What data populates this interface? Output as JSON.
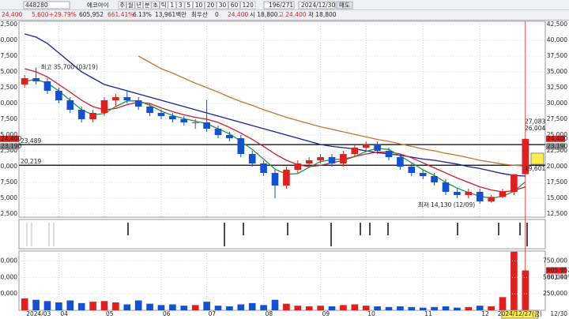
{
  "toolbar": {
    "code": "448280",
    "name": "에코아이",
    "periods": [
      "주",
      "월",
      "년",
      "분",
      "초",
      "틱",
      "1",
      "3",
      "5",
      "10",
      "20",
      "30",
      "60",
      "120"
    ],
    "page": "196/271",
    "date": "2024/12/30",
    "action": "매도"
  },
  "quote": {
    "price": "24,400",
    "change": "5,600",
    "rate": "+29.79%",
    "volume": "605,952",
    "volume_rate": "661.41%",
    "turnover": "6.13%",
    "amount": "13,961백만",
    "best_label": "최우선",
    "best_qty": "0",
    "best_price": "24,400",
    "open": "시 18,800",
    "high": "고 24,400",
    "low": "저 18,800"
  },
  "chart_data": [
    {
      "type": "candlestick",
      "categories": [
        null,
        null,
        null,
        null,
        null,
        null,
        null,
        null,
        null,
        null,
        null,
        null,
        null,
        null,
        null,
        null,
        null,
        null,
        null,
        null,
        null,
        null,
        null,
        null,
        null,
        null,
        null,
        null,
        null,
        null,
        null,
        null,
        null,
        null,
        null,
        null,
        null,
        null,
        null,
        null,
        null,
        null,
        null,
        null,
        null
      ],
      "open": [
        33000,
        34000,
        33500,
        32000,
        30500,
        29000,
        27500,
        28500,
        30500,
        31000,
        30500,
        29500,
        28500,
        28000,
        27500,
        27000,
        27000,
        26000,
        25000,
        24500,
        22000,
        20500,
        19000,
        17000,
        19500,
        20500,
        21000,
        21500,
        20500,
        22000,
        23000,
        23500,
        22500,
        21500,
        20000,
        19000,
        18500,
        17500,
        16000,
        15500,
        16000,
        14500,
        15200,
        16000,
        18800
      ],
      "high": [
        34500,
        35700,
        34000,
        32500,
        31000,
        29500,
        29000,
        31000,
        31500,
        32000,
        31000,
        30000,
        29000,
        28500,
        28000,
        27500,
        30500,
        26500,
        25500,
        25000,
        22500,
        21000,
        19500,
        20000,
        21000,
        21500,
        22000,
        22000,
        22500,
        23500,
        24000,
        24000,
        23000,
        22000,
        20500,
        19500,
        19000,
        18000,
        16500,
        16500,
        16500,
        15500,
        16500,
        18800,
        24400
      ],
      "low": [
        32500,
        33000,
        31500,
        30000,
        28500,
        27000,
        27000,
        28000,
        29500,
        30000,
        29000,
        28000,
        27500,
        27000,
        26500,
        26000,
        25500,
        24500,
        24000,
        21500,
        20000,
        18500,
        15000,
        16500,
        19000,
        20000,
        20500,
        20000,
        20000,
        21500,
        22500,
        22000,
        21000,
        19500,
        18500,
        18000,
        17000,
        15500,
        15000,
        15000,
        14130,
        14300,
        15000,
        15500,
        18800
      ],
      "close": [
        34000,
        33500,
        32000,
        30500,
        29000,
        27500,
        28500,
        30500,
        31000,
        30500,
        29500,
        28500,
        28000,
        27500,
        27000,
        27000,
        26000,
        25000,
        24500,
        22000,
        20500,
        19000,
        17000,
        19500,
        20500,
        21000,
        21500,
        20500,
        22000,
        23000,
        23500,
        22500,
        21500,
        20000,
        19000,
        18500,
        17500,
        16000,
        15500,
        16000,
        14500,
        15200,
        16000,
        18800,
        24400
      ],
      "up_color": "#e0201e",
      "down_color": "#1450d2",
      "series": [
        {
          "color": "#1c1ca0",
          "values": [
            41000,
            40500,
            39500,
            38000,
            36500,
            35000,
            34000,
            33000,
            32500,
            32000,
            31500,
            31000,
            30500,
            30000,
            29500,
            29000,
            28500,
            28000,
            27500,
            27000,
            26500,
            26000,
            25500,
            25000,
            24500,
            24000,
            23500,
            23200,
            23000,
            22800,
            22500,
            22200,
            22000,
            21800,
            21500,
            21200,
            21000,
            20700,
            20400,
            20000,
            19700,
            19300,
            18900,
            18600,
            18500
          ]
        },
        {
          "color": "#c8742a",
          "values": [
            null,
            null,
            null,
            null,
            null,
            null,
            null,
            null,
            null,
            null,
            37500,
            36500,
            35500,
            34800,
            34000,
            33200,
            32500,
            31800,
            31000,
            30300,
            29700,
            29000,
            28400,
            27800,
            27300,
            26800,
            26300,
            25900,
            25500,
            25100,
            24700,
            24300,
            24000,
            23600,
            23200,
            22800,
            22500,
            22100,
            21800,
            21400,
            21000,
            20700,
            20400,
            20200,
            20100
          ]
        },
        {
          "color": "#c81e32",
          "values": [
            35500,
            35000,
            34200,
            33000,
            31800,
            30500,
            29500,
            29000,
            29200,
            29800,
            30200,
            30000,
            29300,
            28700,
            28200,
            27800,
            27500,
            27000,
            26200,
            25300,
            24300,
            23200,
            22000,
            21000,
            20300,
            20000,
            20200,
            20600,
            21000,
            21600,
            22000,
            22300,
            22300,
            22000,
            21400,
            20600,
            19800,
            19000,
            18200,
            17500,
            16800,
            16300,
            16000,
            16200,
            16800
          ]
        },
        {
          "color": "#1e9646",
          "values": [
            33500,
            33800,
            33200,
            32000,
            30500,
            29000,
            28200,
            28400,
            29500,
            30400,
            30400,
            29700,
            28800,
            28100,
            27600,
            27200,
            26800,
            26000,
            25200,
            24000,
            22700,
            21200,
            19600,
            18800,
            18900,
            19900,
            20800,
            21100,
            21200,
            21600,
            22400,
            22900,
            22700,
            21700,
            20600,
            19500,
            18600,
            17500,
            16600,
            15900,
            15300,
            15000,
            15300,
            16100,
            17600
          ]
        }
      ],
      "ylim": [
        12000,
        43000
      ],
      "yticks": [
        {
          "value": 12500,
          "label": "12,500"
        },
        {
          "value": 15000,
          "label": "15,000"
        },
        {
          "value": 17500,
          "label": "17,500"
        },
        {
          "value": 20000,
          "label": "20,000"
        },
        {
          "value": 22500,
          "label": "22,500"
        },
        {
          "value": 25000,
          "label": "25,000"
        },
        {
          "value": 27500,
          "label": "27,500"
        },
        {
          "value": 30000,
          "label": "30,000"
        },
        {
          "value": 32500,
          "label": "32,500"
        },
        {
          "value": 35000,
          "label": "35,000"
        },
        {
          "value": 37500,
          "label": "37,500"
        },
        {
          "value": 40000,
          "label": "40,000"
        },
        {
          "value": 42500,
          "label": "42,500"
        }
      ],
      "hlines": [
        {
          "value": 23489,
          "label": "23,489"
        },
        {
          "value": 20219,
          "label": "20,219"
        }
      ],
      "high_label": "최고 35,700 (03/19)",
      "low_label": "최저 14,130 (12/09)",
      "side_labels": [
        {
          "value": 27083,
          "label": "27,083"
        },
        {
          "value": 26004,
          "label": "26,004"
        },
        {
          "value": 19601,
          "label": "19,601"
        }
      ],
      "boxes": [
        {
          "value": 24400,
          "label": "24,400",
          "color": "#e0201e"
        },
        {
          "value": 23190,
          "label": "23,190",
          "color": "#8a8a8a"
        }
      ],
      "grid": true
    },
    {
      "type": "bar",
      "values": [
        180000,
        160000,
        140000,
        120000,
        150000,
        110000,
        130000,
        140000,
        120000,
        90000,
        150000,
        100000,
        80000,
        90000,
        70000,
        80000,
        130000,
        70000,
        60000,
        90000,
        110000,
        80000,
        160000,
        100000,
        70000,
        60000,
        70000,
        60000,
        80000,
        90000,
        70000,
        60000,
        50000,
        60000,
        50000,
        40000,
        50000,
        60000,
        40000,
        50000,
        70000,
        60000,
        200000,
        890000,
        605952
      ],
      "ylim": [
        0,
        900000
      ],
      "yticks": [
        {
          "value": 250000,
          "label": "250,000"
        },
        {
          "value": 500000,
          "label": "500,000"
        },
        {
          "value": 750000,
          "label": "750,000"
        }
      ],
      "side_labels": [
        {
          "value": 605952,
          "label": "605,952"
        }
      ],
      "rate_label": "661.41%",
      "xticks": [
        {
          "value": 0,
          "label": "2024/03"
        },
        {
          "value": 3,
          "label": "04"
        },
        {
          "value": 7,
          "label": "05"
        },
        {
          "value": 12,
          "label": "06"
        },
        {
          "value": 16,
          "label": "07"
        },
        {
          "value": 21,
          "label": "08"
        },
        {
          "value": 26,
          "label": "09"
        },
        {
          "value": 30,
          "label": "10"
        },
        {
          "value": 35,
          "label": "11"
        },
        {
          "value": 40,
          "label": "12"
        }
      ],
      "cursor_label": "2024/12/27(금)",
      "end_label": "12/30",
      "grid": true
    }
  ]
}
